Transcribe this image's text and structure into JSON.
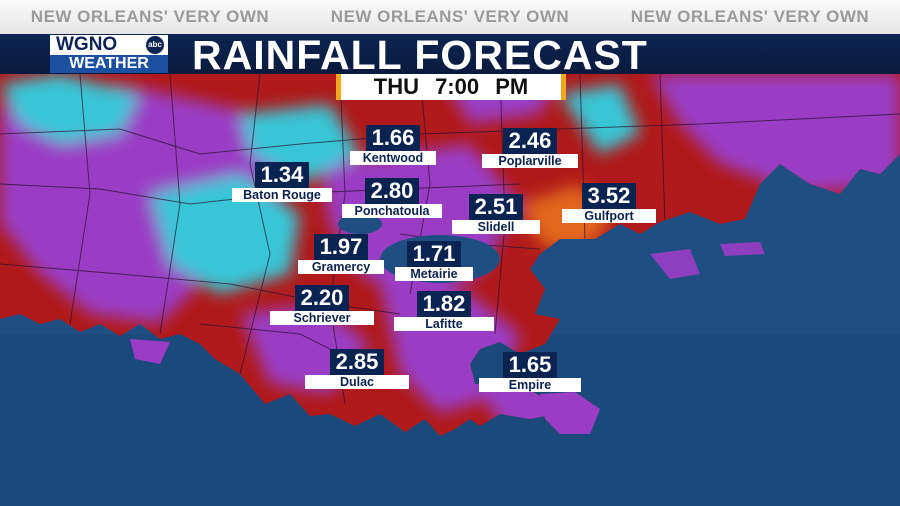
{
  "ticker": [
    "NEW ORLEANS' VERY OWN",
    "NEW ORLEANS' VERY OWN",
    "NEW ORLEANS' VERY OWN"
  ],
  "logo": {
    "station": "WGNO",
    "network": "abc",
    "sub": "WEATHER"
  },
  "title": "RAINFALL FORECAST",
  "timestamp": "THU 7:00 PM",
  "colors": {
    "water": "#1f4f82",
    "land_red": "#b01919",
    "land_purple": "#9a3cc4",
    "land_cyan": "#37c6d6",
    "land_orange": "#e2661e",
    "value_bg": "#0b2350",
    "accent": "#f2a81d"
  },
  "cities": [
    {
      "name": "Kentwood",
      "value": "1.66"
    },
    {
      "name": "Poplarville",
      "value": "2.46"
    },
    {
      "name": "Baton Rouge",
      "value": "1.34"
    },
    {
      "name": "Ponchatoula",
      "value": "2.80"
    },
    {
      "name": "Slidell",
      "value": "2.51"
    },
    {
      "name": "Gulfport",
      "value": "3.52"
    },
    {
      "name": "Gramercy",
      "value": "1.97"
    },
    {
      "name": "Metairie",
      "value": "1.71"
    },
    {
      "name": "Schriever",
      "value": "2.20"
    },
    {
      "name": "Lafitte",
      "value": "1.82"
    },
    {
      "name": "Dulac",
      "value": "2.85"
    },
    {
      "name": "Empire",
      "value": "1.65"
    }
  ]
}
